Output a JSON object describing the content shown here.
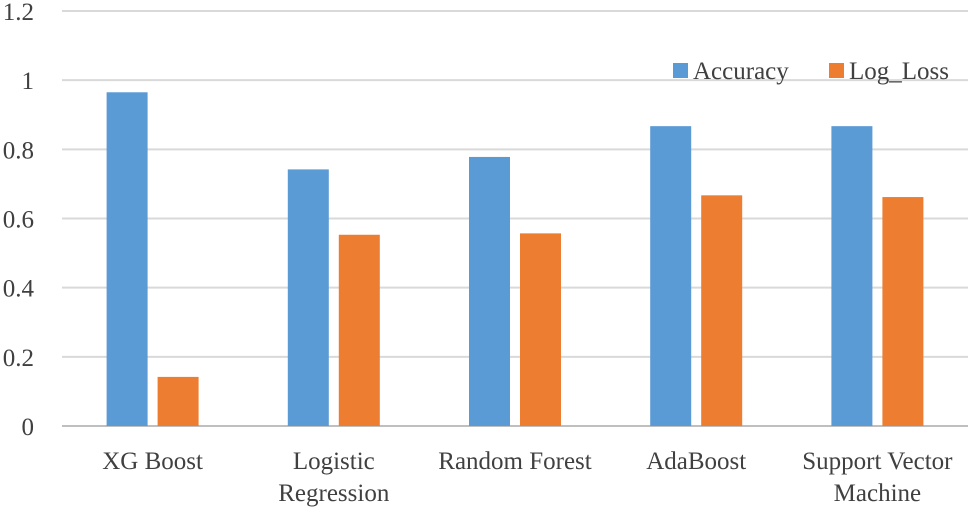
{
  "chart_data": {
    "type": "bar",
    "title": "",
    "xlabel": "",
    "ylabel": "",
    "categories": [
      [
        "XG Boost"
      ],
      [
        "Logistic",
        "Regression"
      ],
      [
        "Random Forest"
      ],
      [
        "AdaBoost"
      ],
      [
        "Support Vector",
        "Machine"
      ]
    ],
    "series": [
      {
        "name": "Accuracy",
        "color": "#5B9BD5",
        "values": [
          0.965,
          0.742,
          0.778,
          0.867,
          0.867
        ]
      },
      {
        "name": "Log_Loss",
        "color": "#ED7D31",
        "values": [
          0.142,
          0.553,
          0.557,
          0.667,
          0.662
        ]
      }
    ],
    "ylim": [
      0,
      1.2
    ],
    "yticks": [
      0,
      0.2,
      0.4,
      0.6,
      0.8,
      1,
      1.2
    ],
    "ytick_labels": [
      "0",
      "0.2",
      "0.4",
      "0.6",
      "0.8",
      "1",
      "1.2"
    ],
    "grid": true,
    "legend_position": "top-right"
  }
}
